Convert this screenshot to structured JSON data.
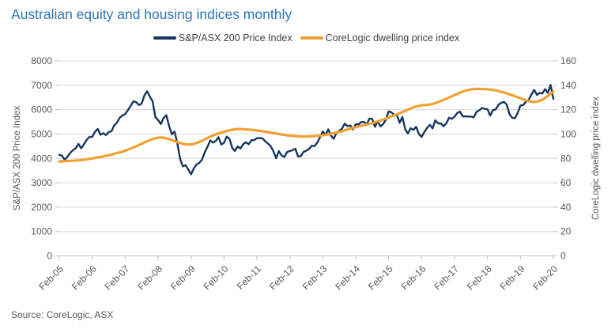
{
  "title": "Australian equity and housing indices monthly",
  "source": "Source: CoreLogic, ASX",
  "colors": {
    "title_text": "#2E75B6",
    "axis_text": "#595959",
    "legend_text": "#404040",
    "gridline": "#D9D9D9",
    "axis_line": "#BFBFBF",
    "background": "#FFFFFF"
  },
  "chart_data": {
    "type": "line",
    "title": "Australian equity and housing indices monthly",
    "x_unit": "month",
    "x_start": "Feb-05",
    "x_end": "Feb-20",
    "x_tick_interval_months": 12,
    "x_tick_labels": [
      "Feb-05",
      "Feb-06",
      "Feb-07",
      "Feb-08",
      "Feb-09",
      "Feb-10",
      "Feb-11",
      "Feb-12",
      "Feb-13",
      "Feb-14",
      "Feb-15",
      "Feb-16",
      "Feb-17",
      "Feb-18",
      "Feb-19",
      "Feb-20"
    ],
    "grid": true,
    "legend_position": "top",
    "left_axis": {
      "label": "S&P/ASX 200 Price Index",
      "min": 0,
      "max": 8000,
      "tick_step": 1000,
      "ticks": [
        0,
        1000,
        2000,
        3000,
        4000,
        5000,
        6000,
        7000,
        8000
      ]
    },
    "right_axis": {
      "label": "CoreLogic dwelling price index",
      "min": 0,
      "max": 160,
      "tick_step": 20,
      "ticks": [
        0,
        20,
        40,
        60,
        80,
        100,
        120,
        140,
        160
      ]
    },
    "series": [
      {
        "name": "S&P/ASX 200 Price Index",
        "axis": "left",
        "color": "#17375E",
        "stroke_width": 2.4,
        "values": [
          4143,
          4109,
          3937,
          4073,
          4230,
          4338,
          4414,
          4593,
          4413,
          4584,
          4763,
          4880,
          4886,
          5088,
          5208,
          4972,
          5034,
          4957,
          5080,
          5113,
          5352,
          5461,
          5670,
          5757,
          5816,
          5978,
          6158,
          6342,
          6310,
          6188,
          6248,
          6580,
          6754,
          6533,
          6339,
          5697,
          5572,
          5410,
          5657,
          5774,
          5333,
          4985,
          5100,
          4632,
          3983,
          3673,
          3722,
          3541,
          3345,
          3582,
          3745,
          3818,
          3955,
          4244,
          4479,
          4739,
          4646,
          4715,
          4871,
          4570,
          4638,
          4893,
          4807,
          4430,
          4302,
          4493,
          4404,
          4583,
          4662,
          4584,
          4745,
          4754,
          4829,
          4837,
          4823,
          4708,
          4608,
          4500,
          4297,
          4009,
          4298,
          4119,
          4057,
          4263,
          4299,
          4335,
          4396,
          4076,
          4095,
          4269,
          4316,
          4387,
          4517,
          4506,
          4649,
          4879,
          5105,
          4967,
          5191,
          4927,
          4803,
          5052,
          5135,
          5219,
          5425,
          5320,
          5352,
          5190,
          5405,
          5395,
          5490,
          5493,
          5396,
          5633,
          5625,
          5293,
          5527,
          5313,
          5411,
          5588,
          5928,
          5892,
          5790,
          5777,
          5459,
          5699,
          5207,
          5022,
          5239,
          5166,
          5296,
          5006,
          4881,
          5083,
          5252,
          5378,
          5233,
          5562,
          5433,
          5436,
          5318,
          5440,
          5666,
          5621,
          5712,
          5865,
          5924,
          5724,
          5721,
          5720,
          5715,
          5682,
          5909,
          5970,
          6065,
          6038,
          6016,
          5759,
          5982,
          6012,
          6195,
          6280,
          6320,
          6208,
          5830,
          5667,
          5646,
          5865,
          6169,
          6181,
          6325,
          6397,
          6619,
          6812,
          6604,
          6688,
          6663,
          6846,
          6684,
          7017,
          6441
        ]
      },
      {
        "name": "CoreLogic dwelling price index",
        "axis": "right",
        "color": "#F0A132",
        "stroke_width": 3.2,
        "values": [
          77.5,
          77.6,
          77.7,
          77.8,
          77.9,
          78.0,
          78.2,
          78.4,
          78.6,
          78.9,
          79.2,
          79.6,
          80.0,
          80.4,
          80.8,
          81.2,
          81.6,
          82.1,
          82.6,
          83.1,
          83.7,
          84.3,
          84.9,
          85.5,
          86.3,
          87.2,
          88.1,
          89.0,
          90.0,
          91.0,
          92.0,
          93.0,
          94.0,
          95.0,
          95.8,
          96.5,
          97.0,
          97.2,
          97.0,
          96.5,
          95.8,
          95.0,
          94.2,
          93.4,
          92.6,
          92.0,
          91.6,
          91.4,
          91.5,
          91.9,
          92.6,
          93.5,
          94.5,
          95.6,
          96.7,
          97.8,
          98.8,
          99.7,
          100.5,
          101.2,
          101.8,
          102.4,
          103.0,
          103.5,
          103.9,
          104.1,
          104.1,
          104.0,
          103.8,
          103.6,
          103.4,
          103.2,
          102.9,
          102.6,
          102.3,
          102.0,
          101.6,
          101.2,
          100.8,
          100.4,
          100.0,
          99.6,
          99.3,
          99.0,
          98.7,
          98.5,
          98.3,
          98.1,
          98.0,
          98.0,
          98.0,
          98.1,
          98.2,
          98.3,
          98.5,
          98.7,
          99.0,
          99.3,
          99.7,
          100.1,
          100.6,
          101.1,
          101.7,
          102.3,
          103.0,
          103.7,
          104.4,
          105.0,
          105.6,
          106.2,
          106.8,
          107.3,
          107.8,
          108.4,
          109.0,
          109.7,
          110.4,
          111.1,
          111.9,
          112.7,
          113.5,
          114.4,
          115.3,
          116.2,
          117.1,
          118.0,
          119.0,
          120.0,
          121.0,
          121.9,
          122.6,
          123.1,
          123.5,
          123.7,
          123.9,
          124.2,
          124.7,
          125.4,
          126.2,
          127.1,
          128.0,
          129.0,
          130.0,
          131.0,
          132.0,
          133.0,
          134.0,
          134.9,
          135.6,
          136.2,
          136.6,
          136.9,
          137.0,
          137.0,
          136.9,
          136.8,
          136.7,
          136.5,
          136.2,
          135.8,
          135.3,
          134.7,
          134.1,
          133.4,
          132.6,
          131.8,
          131.0,
          130.2,
          129.4,
          128.6,
          127.8,
          127.1,
          126.6,
          126.4,
          126.6,
          127.2,
          128.2,
          129.6,
          131.2,
          133.0,
          134.8
        ]
      }
    ]
  }
}
